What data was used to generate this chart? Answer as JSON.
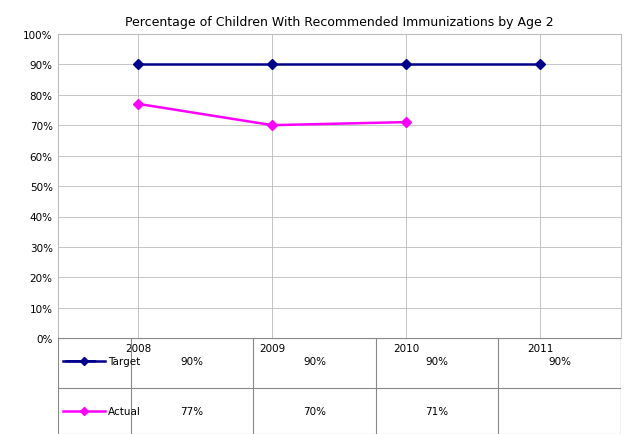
{
  "title": "Percentage of Children With Recommended Immunizations by Age 2",
  "years": [
    2008,
    2009,
    2010,
    2011
  ],
  "target_values": [
    0.9,
    0.9,
    0.9,
    0.9
  ],
  "actual_values": [
    0.77,
    0.7,
    0.71,
    null
  ],
  "target_color": "#00008B",
  "actual_color": "#FF00FF",
  "ylim": [
    0,
    1.0
  ],
  "yticks": [
    0.0,
    0.1,
    0.2,
    0.3,
    0.4,
    0.5,
    0.6,
    0.7,
    0.8,
    0.9,
    1.0
  ],
  "ytick_labels": [
    "0%",
    "10%",
    "20%",
    "30%",
    "40%",
    "50%",
    "60%",
    "70%",
    "80%",
    "90%",
    "100%"
  ],
  "table_target_labels": [
    "90%",
    "90%",
    "90%",
    "90%"
  ],
  "table_actual_labels": [
    "77%",
    "70%",
    "71%",
    ""
  ],
  "legend_target": "Target",
  "legend_actual": "Actual",
  "title_fontsize": 9,
  "tick_fontsize": 7.5,
  "table_fontsize": 7.5,
  "background_color": "#ffffff",
  "grid_color": "#bbbbbb",
  "xlim_left": 2007.4,
  "xlim_right": 2011.6
}
